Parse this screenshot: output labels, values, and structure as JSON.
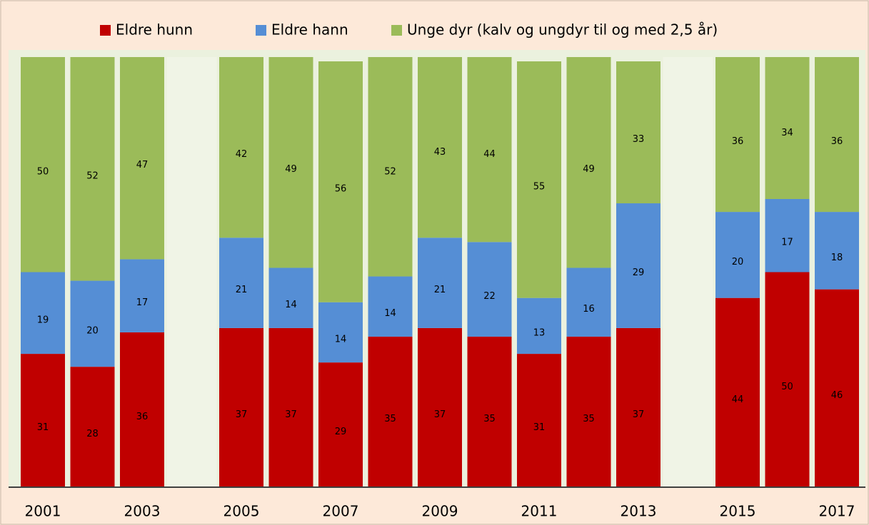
{
  "chart_data": {
    "type": "stacked_bar",
    "categories": [
      "2001",
      null,
      "2003",
      null,
      "2005",
      null,
      "2007",
      null,
      "2009",
      null,
      "2011",
      null,
      "2013",
      null,
      "2015",
      null,
      "2017"
    ],
    "series": [
      {
        "name": "Eldre hunn",
        "color": "#c00000",
        "values": [
          31,
          28,
          36,
          null,
          37,
          37,
          29,
          35,
          37,
          35,
          31,
          35,
          37,
          null,
          44,
          50,
          46
        ]
      },
      {
        "name": "Eldre hann",
        "color": "#558ed5",
        "values": [
          19,
          20,
          17,
          null,
          21,
          14,
          14,
          14,
          21,
          22,
          13,
          16,
          29,
          null,
          20,
          17,
          18
        ]
      },
      {
        "name": "Unge dyr (kalv og ungdyr til og med 2,5 år)",
        "color": "#9bbb59",
        "values": [
          50,
          52,
          47,
          null,
          42,
          49,
          56,
          52,
          43,
          44,
          55,
          49,
          33,
          null,
          36,
          34,
          36
        ]
      }
    ],
    "ylim": [
      0,
      100
    ],
    "legend": "top"
  }
}
